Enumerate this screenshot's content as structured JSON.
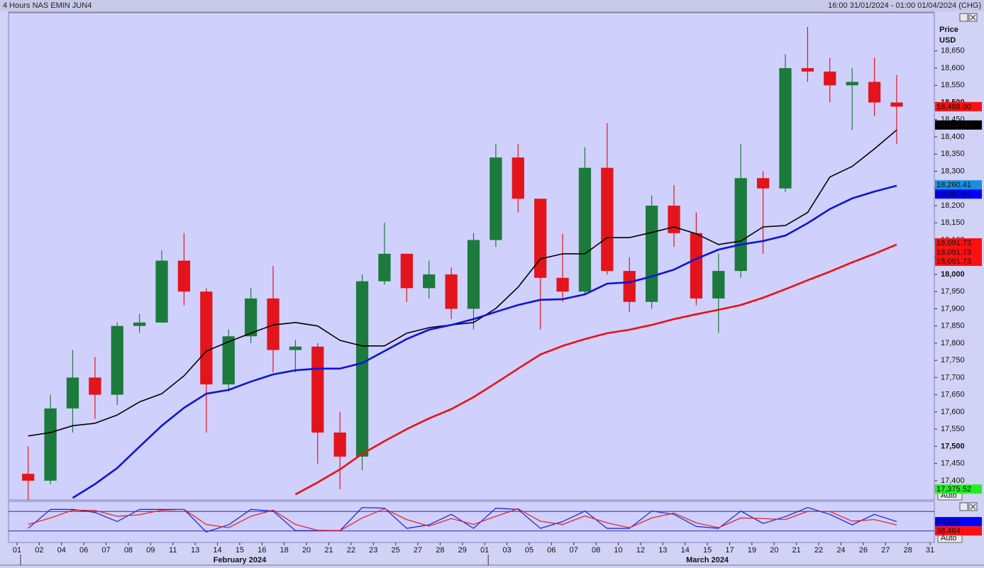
{
  "chart_data": {
    "type": "candlestick",
    "title": "4 Hours NAS EMIN JUN4",
    "subtitle": "16:00 31/01/2024 - 01:00 01/04/2024 (CHG)",
    "y_label": "Price",
    "y_unit": "USD",
    "scale_mode": "Auto",
    "categories": [
      "01",
      "02",
      "04",
      "06",
      "07",
      "08",
      "09",
      "11",
      "13",
      "14",
      "15",
      "16",
      "18",
      "20",
      "21",
      "22",
      "23",
      "25",
      "27",
      "28",
      "29",
      "01",
      "03",
      "05",
      "06",
      "07",
      "08",
      "10",
      "12",
      "13",
      "14",
      "15",
      "17",
      "19",
      "20",
      "21",
      "22",
      "24",
      "26",
      "27",
      "28",
      "31"
    ],
    "months": [
      "February 2024",
      "March 2024"
    ],
    "open": [
      17420,
      17400,
      17610,
      17700,
      17650,
      17850,
      17860,
      18040,
      17950,
      17680,
      17820,
      17930,
      17780,
      17790,
      17540,
      17470,
      17980,
      18060,
      17960,
      18000,
      17900,
      18100,
      18340,
      18220,
      17990,
      17950,
      18310,
      18010,
      17920,
      18200,
      18120,
      17930,
      18010,
      18280,
      18250,
      18600,
      18590,
      18550,
      18560,
      18500,
      null,
      null
    ],
    "high": [
      17500,
      17650,
      17780,
      17760,
      17860,
      17885,
      18070,
      18120,
      17960,
      17840,
      17960,
      18025,
      17810,
      17800,
      17600,
      18000,
      18150,
      18060,
      18040,
      18020,
      18120,
      18380,
      18380,
      18220,
      18118,
      18370,
      18440,
      18050,
      18230,
      18260,
      18180,
      18060,
      18380,
      18300,
      18640,
      18720,
      18630,
      18600,
      18630,
      18580,
      null,
      null
    ],
    "low": [
      17340,
      17390,
      17540,
      17580,
      17620,
      17830,
      17860,
      17910,
      17540,
      17660,
      17800,
      17715,
      17715,
      17450,
      17375,
      17430,
      17970,
      17920,
      17930,
      17870,
      17840,
      18080,
      18180,
      17840,
      17920,
      17940,
      18000,
      17890,
      17900,
      18080,
      17910,
      17830,
      17990,
      18060,
      18240,
      18560,
      18500,
      18420,
      18460,
      18380,
      null,
      null
    ],
    "close": [
      17400,
      17610,
      17700,
      17650,
      17850,
      17860,
      18040,
      17950,
      17680,
      17820,
      17930,
      17780,
      17790,
      17540,
      17470,
      17980,
      18060,
      17960,
      18000,
      17900,
      18100,
      18340,
      18220,
      17990,
      17950,
      18310,
      18010,
      17920,
      18200,
      18120,
      17930,
      18010,
      18280,
      18250,
      18600,
      18590,
      18550,
      18560,
      18500,
      18488,
      null,
      null
    ],
    "up_color": "#1b7a3c",
    "down_color": "#e3141c",
    "series": [
      {
        "color": "#000000",
        "width": 1.6,
        "values": [
          17530,
          17540,
          17560,
          17567,
          17591,
          17629,
          17653,
          17705,
          17777,
          17804,
          17829,
          17853,
          17860,
          17850,
          17808,
          17792,
          17792,
          17829,
          17845,
          17853,
          17860,
          17901,
          17963,
          18045,
          18060,
          18060,
          18107,
          18107,
          18122,
          18138,
          18118,
          18087,
          18097,
          18138,
          18142,
          18180,
          18283,
          18314,
          18365,
          18420,
          null,
          null
        ]
      },
      {
        "color": "#0a14dc",
        "width": 2.6,
        "values": [
          null,
          null,
          17350,
          17390,
          17437,
          17499,
          17560,
          17612,
          17653,
          17664,
          17688,
          17709,
          17721,
          17726,
          17726,
          17742,
          17777,
          17812,
          17839,
          17853,
          17870,
          17891,
          17911,
          17926,
          17928,
          17942,
          17973,
          17977,
          17994,
          18014,
          18045,
          18072,
          18087,
          18097,
          18113,
          18149,
          18190,
          18221,
          18241,
          18258,
          null,
          null
        ]
      },
      {
        "color": "#ec1010",
        "width": 2.6,
        "values": [
          null,
          null,
          null,
          null,
          null,
          null,
          null,
          null,
          null,
          null,
          null,
          null,
          17360,
          17395,
          17433,
          17478,
          17515,
          17550,
          17581,
          17608,
          17643,
          17684,
          17726,
          17767,
          17792,
          17812,
          17829,
          17839,
          17853,
          17870,
          17884,
          17897,
          17911,
          17932,
          17957,
          17983,
          18008,
          18035,
          18060,
          18087,
          null,
          null
        ]
      }
    ],
    "ylim": [
      17344,
      18761
    ],
    "yticks": [
      {
        "value": 17400,
        "label": "17,400"
      },
      {
        "value": 17450,
        "label": "17,450"
      },
      {
        "value": 17500,
        "label": "17,500"
      },
      {
        "value": 17550,
        "label": "17,550"
      },
      {
        "value": 17600,
        "label": "17,600"
      },
      {
        "value": 17650,
        "label": "17,650"
      },
      {
        "value": 17700,
        "label": "17,700"
      },
      {
        "value": 17750,
        "label": "17,750"
      },
      {
        "value": 17800,
        "label": "17,800"
      },
      {
        "value": 17850,
        "label": "17,850"
      },
      {
        "value": 17900,
        "label": "17,900"
      },
      {
        "value": 17950,
        "label": "17,950"
      },
      {
        "value": 18000,
        "label": "18,000"
      },
      {
        "value": 18050,
        "label": "18,050"
      },
      {
        "value": 18100,
        "label": "18,100"
      },
      {
        "value": 18150,
        "label": "18,150"
      },
      {
        "value": 18200,
        "label": "18,200"
      },
      {
        "value": 18250,
        "label": "18,250"
      },
      {
        "value": 18300,
        "label": "18,300"
      },
      {
        "value": 18350,
        "label": "18,350"
      },
      {
        "value": 18400,
        "label": "18,400"
      },
      {
        "value": 18450,
        "label": "18,450"
      },
      {
        "value": 18500,
        "label": "18,500"
      },
      {
        "value": 18550,
        "label": "18,550"
      },
      {
        "value": 18600,
        "label": "18,600"
      },
      {
        "value": 18650,
        "label": "18,650"
      }
    ],
    "price_tags": [
      {
        "value": 18488,
        "label": "18,488.00",
        "color": "#ff1010",
        "text_color": "#000000"
      },
      {
        "value": 18434.49,
        "label": "18,434.49",
        "color": "#000000",
        "text_color": "#ffffff"
      },
      {
        "value": 18260.41,
        "label": "18,260.41",
        "color": "#1a8ee0",
        "text_color": "#ffffff"
      },
      {
        "value": 18260.41,
        "label": "18,260.41",
        "color": "#0000ff",
        "text_color": "#000000"
      },
      {
        "value": 18091.73,
        "label": "18,091.73",
        "color": "#ff1010",
        "text_color": "#ffffff"
      },
      {
        "value": 18091.73,
        "label": "18,091.73",
        "color": "#ff1010",
        "text_color": "#ffffff"
      },
      {
        "value": 18091.73,
        "label": "18,091.73",
        "color": "#ff1010",
        "text_color": "#ffffff"
      },
      {
        "value": 17375.52,
        "label": "17,375.52",
        "color": "#22ee22",
        "text_color": "#000000"
      }
    ],
    "oscillator": {
      "ylim": [
        0,
        100
      ],
      "levels": [
        20,
        80
      ],
      "level_color": "#2a2ab8",
      "series": [
        {
          "color": "#1020e8",
          "values": [
            28,
            86,
            86,
            77,
            49,
            86,
            86,
            86,
            17,
            39,
            86,
            81,
            21,
            21,
            21,
            92,
            90,
            28,
            39,
            71,
            28,
            90,
            86,
            28,
            49,
            81,
            28,
            28,
            81,
            71,
            34,
            28,
            81,
            43,
            64,
            92,
            71,
            39,
            71,
            48.614,
            null,
            null
          ]
        },
        {
          "color": "#e81818",
          "values": [
            40,
            60,
            84,
            83,
            65,
            70,
            84,
            86,
            40,
            30,
            65,
            84,
            40,
            22,
            21,
            60,
            88,
            55,
            35,
            58,
            40,
            65,
            88,
            50,
            40,
            66,
            45,
            30,
            60,
            75,
            45,
            30,
            60,
            58,
            55,
            80,
            80,
            50,
            55,
            38.464,
            null,
            null
          ]
        }
      ],
      "tags": [
        {
          "value": 48.614,
          "color": "#0000ff",
          "text_color": "#000000"
        },
        {
          "value": 38.464,
          "color": "#ff1010",
          "text_color": "#000000"
        }
      ]
    }
  }
}
